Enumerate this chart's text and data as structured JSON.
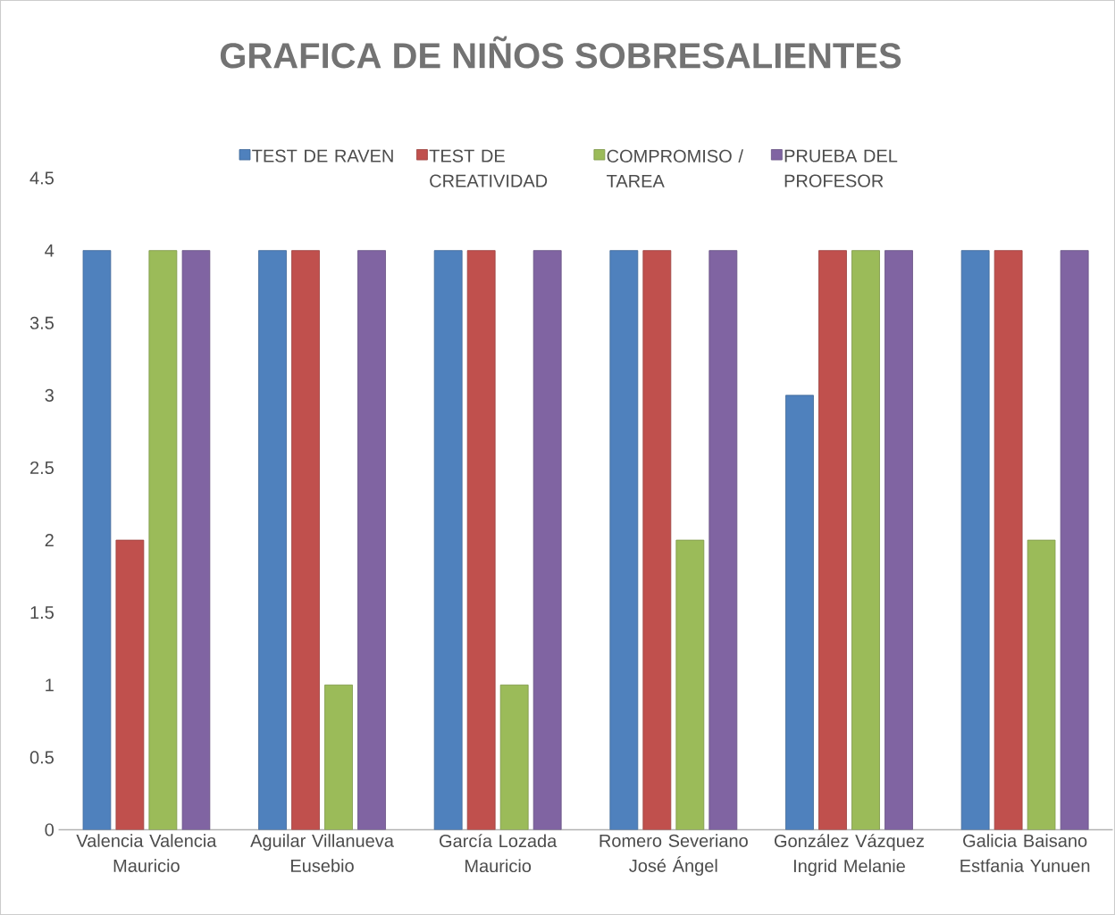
{
  "chart_data": {
    "type": "bar",
    "title": "GRAFICA DE NIÑOS SOBRESALIENTES",
    "categories": [
      "Valencia Valencia Mauricio",
      "Aguilar Villanueva Eusebio",
      "García Lozada Mauricio",
      "Romero Severiano José Ángel",
      "González Vázquez Ingrid Melanie",
      "Galicia Baisano Estfania Yunuen"
    ],
    "series": [
      {
        "name": "TEST  DE RAVEN",
        "color": "#4f81bd",
        "values": [
          4,
          4,
          4,
          4,
          3,
          4
        ]
      },
      {
        "name": "TEST DE CREATIVIDAD",
        "color": "#c0504d",
        "values": [
          2,
          4,
          4,
          4,
          4,
          4
        ]
      },
      {
        "name": "COMPROMISO / TAREA",
        "color": "#9bbb59",
        "values": [
          4,
          1,
          1,
          2,
          4,
          2
        ]
      },
      {
        "name": "PRUEBA DEL PROFESOR",
        "color": "#8064a2",
        "values": [
          4,
          4,
          4,
          4,
          4,
          4
        ]
      }
    ],
    "ylim": [
      0,
      4.5
    ],
    "yticks": [
      0,
      0.5,
      1,
      1.5,
      2,
      2.5,
      3,
      3.5,
      4,
      4.5
    ],
    "grid": false,
    "legend": "top"
  }
}
